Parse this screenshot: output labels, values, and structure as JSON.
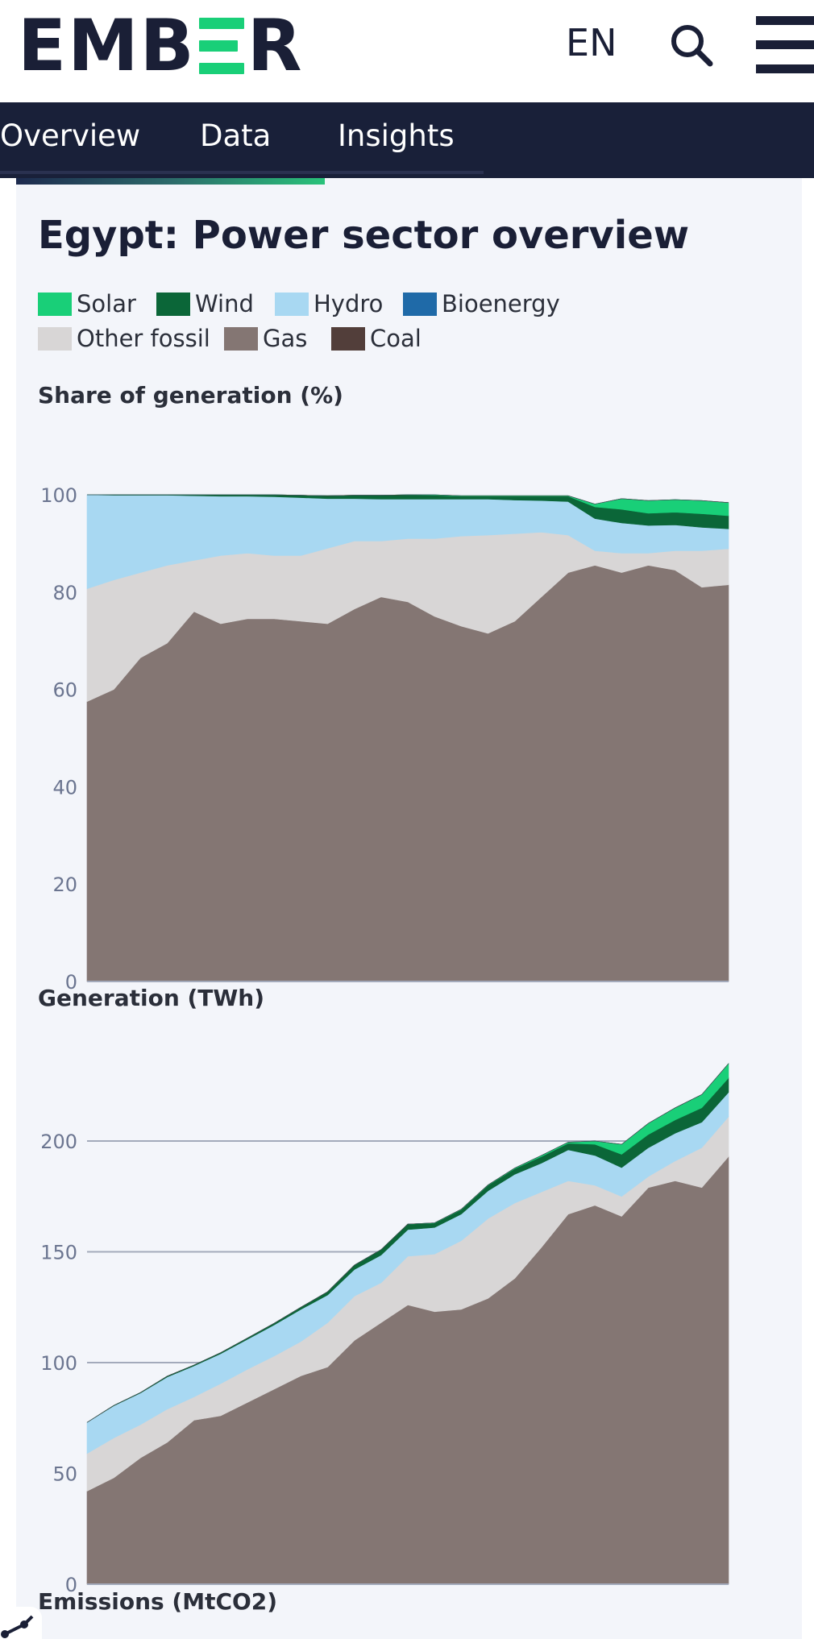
{
  "header": {
    "logo_text": "EMBER",
    "lang": "EN",
    "icons": {
      "search": "search-icon",
      "menu": "menu-icon"
    }
  },
  "nav": {
    "tabs": [
      {
        "label": "Overview"
      },
      {
        "label": "Data"
      },
      {
        "label": "Insights"
      }
    ]
  },
  "page": {
    "title": "Egypt: Power sector overview"
  },
  "legend": [
    {
      "label": "Solar",
      "color": "#19cf78"
    },
    {
      "label": "Wind",
      "color": "#0b6638"
    },
    {
      "label": "Hydro",
      "color": "#a8d8f2"
    },
    {
      "label": "Bioenergy",
      "color": "#1f6aa8"
    },
    {
      "label": "Other fossil",
      "color": "#d8d6d6"
    },
    {
      "label": "Gas",
      "color": "#847673"
    },
    {
      "label": "Coal",
      "color": "#523e3a"
    }
  ],
  "sections": {
    "share_label": "Share of generation (%)",
    "generation_label": "Generation (TWh)",
    "emissions_label": "Emissions (MtCO2)"
  },
  "chart_data": [
    {
      "type": "area",
      "stacked": true,
      "title": "Share of generation (%)",
      "ylim": [
        0,
        100
      ],
      "yticks": [
        0,
        20,
        40,
        60,
        80,
        100
      ],
      "grid": false,
      "series": [
        {
          "name": "Gas",
          "color": "#847673",
          "values": [
            57.5,
            60,
            66.5,
            69.5,
            76,
            73.5,
            74.5,
            74.5,
            74,
            73.5,
            76.5,
            79,
            78,
            75,
            73,
            71.5,
            74,
            79,
            84,
            85.5,
            84,
            85.5,
            84.5,
            81,
            81.5
          ]
        },
        {
          "name": "Other fossil",
          "color": "#d8d6d6",
          "values": [
            23.2,
            22.5,
            17.5,
            16,
            10.5,
            14,
            13.5,
            13,
            13.5,
            15.5,
            14,
            11.5,
            13,
            16,
            18.5,
            20.2,
            18,
            13.3,
            7.7,
            3,
            4,
            2.5,
            4,
            7.5,
            7.4
          ]
        },
        {
          "name": "Hydro",
          "color": "#a8d8f2",
          "values": [
            19.3,
            17.4,
            15.9,
            14.4,
            13.3,
            12.2,
            11.7,
            12.1,
            11.9,
            10.2,
            8.7,
            8.6,
            8.1,
            8.1,
            7.6,
            7.4,
            6.9,
            6.5,
            6.9,
            6.6,
            6.2,
            5.7,
            5.3,
            4.8,
            4.1
          ]
        },
        {
          "name": "Wind",
          "color": "#0b6638",
          "values": [
            0,
            0.1,
            0.1,
            0.1,
            0.2,
            0.3,
            0.3,
            0.4,
            0.5,
            0.6,
            0.7,
            0.8,
            0.9,
            0.8,
            0.6,
            0.6,
            0.8,
            0.9,
            1.1,
            2.4,
            2.8,
            2.5,
            2.6,
            2.8,
            2.7
          ]
        },
        {
          "name": "Solar",
          "color": "#19cf78",
          "values": [
            0,
            0,
            0,
            0,
            0,
            0,
            0,
            0,
            0,
            0,
            0,
            0,
            0,
            0.1,
            0.1,
            0.1,
            0.1,
            0.1,
            0.1,
            0.6,
            2.2,
            2.6,
            2.6,
            2.7,
            2.7
          ]
        },
        {
          "name": "Bioenergy",
          "color": "#1f6aa8",
          "values": [
            0,
            0,
            0,
            0,
            0,
            0,
            0,
            0,
            0,
            0,
            0,
            0,
            0,
            0,
            0,
            0,
            0,
            0,
            0,
            0,
            0,
            0,
            0,
            0,
            0
          ]
        },
        {
          "name": "Coal",
          "color": "#523e3a",
          "values": [
            0,
            0,
            0,
            0,
            0,
            0,
            0,
            0,
            0,
            0,
            0,
            0,
            0,
            0,
            0,
            0,
            0,
            0,
            0,
            0,
            0,
            0,
            0,
            0,
            0
          ]
        }
      ]
    },
    {
      "type": "area",
      "stacked": true,
      "title": "Generation (TWh)",
      "ylim": [
        0,
        240
      ],
      "yticks": [
        0,
        50,
        100,
        150,
        200
      ],
      "grid": true,
      "series": [
        {
          "name": "Gas",
          "color": "#847673",
          "values": [
            42,
            48,
            57,
            64,
            74,
            76,
            82,
            88,
            94,
            98,
            110,
            118,
            126,
            123,
            124,
            129,
            138,
            152,
            167,
            171,
            166,
            179,
            182,
            179,
            193
          ]
        },
        {
          "name": "Other fossil",
          "color": "#d8d6d6",
          "values": [
            17,
            18,
            15,
            15,
            10.5,
            14.5,
            15,
            15,
            15.5,
            20,
            20,
            18,
            22,
            26,
            31,
            36,
            34,
            25,
            15,
            9,
            9,
            5,
            9,
            18,
            18
          ]
        },
        {
          "name": "Hydro",
          "color": "#a8d8f2",
          "values": [
            14,
            14.5,
            14.3,
            14.5,
            14,
            13.5,
            13.5,
            14,
            14.5,
            12.5,
            12,
            12.5,
            12,
            12,
            12,
            12.5,
            13,
            13,
            14,
            13.5,
            13,
            13,
            12.5,
            11.5,
            11
          ]
        },
        {
          "name": "Wind",
          "color": "#0b6638",
          "values": [
            0,
            0.2,
            0.2,
            0.4,
            0.4,
            0.5,
            0.6,
            0.8,
            1.0,
            1.5,
            2,
            2.5,
            2.5,
            2,
            2,
            2.5,
            2.5,
            3,
            3,
            5,
            6,
            6,
            6,
            6.5,
            6.5
          ]
        },
        {
          "name": "Solar",
          "color": "#19cf78",
          "values": [
            0,
            0,
            0,
            0,
            0,
            0,
            0,
            0,
            0,
            0,
            0,
            0,
            0,
            0.1,
            0.2,
            0.2,
            0.3,
            0.5,
            0.5,
            1.5,
            4.5,
            5,
            5.5,
            6,
            6.5
          ]
        },
        {
          "name": "Bioenergy",
          "color": "#1f6aa8",
          "values": [
            0,
            0,
            0,
            0,
            0,
            0,
            0,
            0,
            0,
            0,
            0,
            0,
            0,
            0,
            0,
            0,
            0,
            0,
            0,
            0,
            0,
            0,
            0,
            0,
            0
          ]
        },
        {
          "name": "Coal",
          "color": "#523e3a",
          "values": [
            0,
            0,
            0,
            0,
            0,
            0,
            0,
            0,
            0,
            0,
            0,
            0,
            0,
            0,
            0,
            0,
            0,
            0,
            0,
            0,
            0,
            0,
            0,
            0,
            0
          ]
        }
      ]
    }
  ]
}
